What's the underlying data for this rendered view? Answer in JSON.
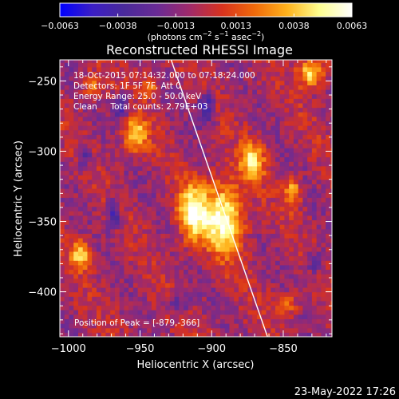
{
  "chart_data": {
    "type": "heatmap",
    "title": "Reconstructed RHESSI Image",
    "xlabel": "Heliocentric X (arcsec)",
    "ylabel": "Heliocentric Y (arcsec)",
    "xlim": [
      -1006,
      -816
    ],
    "ylim": [
      -432,
      -235
    ],
    "x_ticks": [
      -1000,
      -950,
      -900,
      -850
    ],
    "x_tick_labels": [
      "−1000",
      "−950",
      "−900",
      "−850"
    ],
    "y_ticks": [
      -250,
      -300,
      -350,
      -400
    ],
    "y_tick_labels": [
      "−250",
      "−300",
      "−350",
      "−400"
    ],
    "colorbar": {
      "min": -0.0063,
      "max": 0.0063,
      "ticks": [
        -0.0063,
        -0.0038,
        -0.0013,
        0.0013,
        0.0038,
        0.0063
      ],
      "tick_labels": [
        "−0.0063",
        "−0.0038",
        "−0.0013",
        "0.0013",
        "0.0038",
        "0.0063"
      ],
      "units_text": "(photons cm",
      "units_sup1": "−2",
      "units_mid": " s",
      "units_sup2": "−1",
      "units_mid2": " asec",
      "units_sup3": "−2",
      "units_end": ")",
      "colormap": "rainbow-heat",
      "stops": [
        "#0000ff",
        "#3b1ec4",
        "#4a2a9a",
        "#6a2b95",
        "#a02a6a",
        "#d8321e",
        "#f06a0a",
        "#ffb21c",
        "#ffff90",
        "#ffffff"
      ]
    },
    "annotations": [
      "18-Oct-2015 07:14:32.000 to 07:18:24.000",
      "Detectors: 1F 5F 7F, Att 0",
      "Energy Range: 25.0 - 50.0 keV",
      "Clean     Total counts: 2.79E+03"
    ],
    "peak_label": "Position of Peak = [-879,-366]",
    "peak": [
      -879,
      -366
    ],
    "limb_line": {
      "points": [
        [
          -930,
          -230
        ],
        [
          -860,
          -435
        ]
      ],
      "color": "#ffffff"
    },
    "sources": [
      {
        "x": -893,
        "y": -348,
        "w": 10,
        "h": 18,
        "value": 0.0063
      },
      {
        "x": -915,
        "y": -345,
        "w": 7,
        "h": 14,
        "value": 0.006
      },
      {
        "x": -873,
        "y": -308,
        "w": 6,
        "h": 9,
        "value": 0.0048
      },
      {
        "x": -955,
        "y": -290,
        "w": 6,
        "h": 9,
        "value": 0.0047
      },
      {
        "x": -832,
        "y": -245,
        "w": 6,
        "h": 7,
        "value": 0.0056
      },
      {
        "x": -845,
        "y": -330,
        "w": 4,
        "h": 8,
        "value": 0.0042
      },
      {
        "x": -993,
        "y": -375,
        "w": 5,
        "h": 7,
        "value": 0.0048
      },
      {
        "x": -985,
        "y": -255,
        "w": 4,
        "h": 6,
        "value": 0.0036
      },
      {
        "x": -945,
        "y": -255,
        "w": 4,
        "h": 6,
        "value": 0.0034
      },
      {
        "x": -850,
        "y": -410,
        "w": 6,
        "h": 5,
        "value": 0.0033
      },
      {
        "x": -970,
        "y": -345,
        "w": 3,
        "h": 8,
        "value": -0.004
      },
      {
        "x": -965,
        "y": -270,
        "w": 4,
        "h": 6,
        "value": -0.0035
      },
      {
        "x": -905,
        "y": -270,
        "w": 4,
        "h": 8,
        "value": -0.0038
      },
      {
        "x": -990,
        "y": -305,
        "w": 3,
        "h": 6,
        "value": -0.0032
      },
      {
        "x": -830,
        "y": -380,
        "w": 4,
        "h": 6,
        "value": -0.003
      },
      {
        "x": -925,
        "y": -410,
        "w": 5,
        "h": 5,
        "value": -0.0028
      }
    ]
  },
  "footer": {
    "date": "23-May-2022 17:26"
  }
}
